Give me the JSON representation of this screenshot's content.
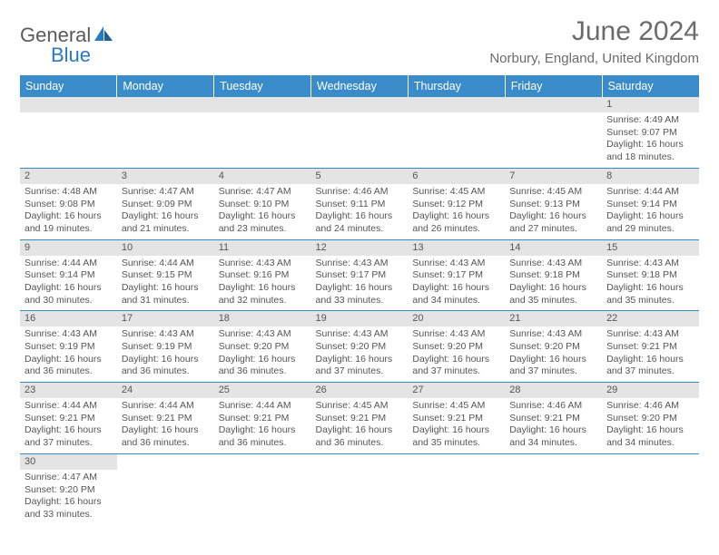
{
  "logo": {
    "part1": "General",
    "part2": "Blue"
  },
  "title": "June 2024",
  "location": "Norbury, England, United Kingdom",
  "colors": {
    "header_bg": "#3a8bc9",
    "header_text": "#ffffff",
    "daynum_bg": "#e4e4e4",
    "text": "#555555",
    "border": "#3a8bc9",
    "logo_gray": "#5a5a5a",
    "logo_blue": "#2a7ac0"
  },
  "day_headers": [
    "Sunday",
    "Monday",
    "Tuesday",
    "Wednesday",
    "Thursday",
    "Friday",
    "Saturday"
  ],
  "weeks": [
    [
      null,
      null,
      null,
      null,
      null,
      null,
      {
        "n": "1",
        "sr": "Sunrise: 4:49 AM",
        "ss": "Sunset: 9:07 PM",
        "d1": "Daylight: 16 hours",
        "d2": "and 18 minutes."
      }
    ],
    [
      {
        "n": "2",
        "sr": "Sunrise: 4:48 AM",
        "ss": "Sunset: 9:08 PM",
        "d1": "Daylight: 16 hours",
        "d2": "and 19 minutes."
      },
      {
        "n": "3",
        "sr": "Sunrise: 4:47 AM",
        "ss": "Sunset: 9:09 PM",
        "d1": "Daylight: 16 hours",
        "d2": "and 21 minutes."
      },
      {
        "n": "4",
        "sr": "Sunrise: 4:47 AM",
        "ss": "Sunset: 9:10 PM",
        "d1": "Daylight: 16 hours",
        "d2": "and 23 minutes."
      },
      {
        "n": "5",
        "sr": "Sunrise: 4:46 AM",
        "ss": "Sunset: 9:11 PM",
        "d1": "Daylight: 16 hours",
        "d2": "and 24 minutes."
      },
      {
        "n": "6",
        "sr": "Sunrise: 4:45 AM",
        "ss": "Sunset: 9:12 PM",
        "d1": "Daylight: 16 hours",
        "d2": "and 26 minutes."
      },
      {
        "n": "7",
        "sr": "Sunrise: 4:45 AM",
        "ss": "Sunset: 9:13 PM",
        "d1": "Daylight: 16 hours",
        "d2": "and 27 minutes."
      },
      {
        "n": "8",
        "sr": "Sunrise: 4:44 AM",
        "ss": "Sunset: 9:14 PM",
        "d1": "Daylight: 16 hours",
        "d2": "and 29 minutes."
      }
    ],
    [
      {
        "n": "9",
        "sr": "Sunrise: 4:44 AM",
        "ss": "Sunset: 9:14 PM",
        "d1": "Daylight: 16 hours",
        "d2": "and 30 minutes."
      },
      {
        "n": "10",
        "sr": "Sunrise: 4:44 AM",
        "ss": "Sunset: 9:15 PM",
        "d1": "Daylight: 16 hours",
        "d2": "and 31 minutes."
      },
      {
        "n": "11",
        "sr": "Sunrise: 4:43 AM",
        "ss": "Sunset: 9:16 PM",
        "d1": "Daylight: 16 hours",
        "d2": "and 32 minutes."
      },
      {
        "n": "12",
        "sr": "Sunrise: 4:43 AM",
        "ss": "Sunset: 9:17 PM",
        "d1": "Daylight: 16 hours",
        "d2": "and 33 minutes."
      },
      {
        "n": "13",
        "sr": "Sunrise: 4:43 AM",
        "ss": "Sunset: 9:17 PM",
        "d1": "Daylight: 16 hours",
        "d2": "and 34 minutes."
      },
      {
        "n": "14",
        "sr": "Sunrise: 4:43 AM",
        "ss": "Sunset: 9:18 PM",
        "d1": "Daylight: 16 hours",
        "d2": "and 35 minutes."
      },
      {
        "n": "15",
        "sr": "Sunrise: 4:43 AM",
        "ss": "Sunset: 9:18 PM",
        "d1": "Daylight: 16 hours",
        "d2": "and 35 minutes."
      }
    ],
    [
      {
        "n": "16",
        "sr": "Sunrise: 4:43 AM",
        "ss": "Sunset: 9:19 PM",
        "d1": "Daylight: 16 hours",
        "d2": "and 36 minutes."
      },
      {
        "n": "17",
        "sr": "Sunrise: 4:43 AM",
        "ss": "Sunset: 9:19 PM",
        "d1": "Daylight: 16 hours",
        "d2": "and 36 minutes."
      },
      {
        "n": "18",
        "sr": "Sunrise: 4:43 AM",
        "ss": "Sunset: 9:20 PM",
        "d1": "Daylight: 16 hours",
        "d2": "and 36 minutes."
      },
      {
        "n": "19",
        "sr": "Sunrise: 4:43 AM",
        "ss": "Sunset: 9:20 PM",
        "d1": "Daylight: 16 hours",
        "d2": "and 37 minutes."
      },
      {
        "n": "20",
        "sr": "Sunrise: 4:43 AM",
        "ss": "Sunset: 9:20 PM",
        "d1": "Daylight: 16 hours",
        "d2": "and 37 minutes."
      },
      {
        "n": "21",
        "sr": "Sunrise: 4:43 AM",
        "ss": "Sunset: 9:20 PM",
        "d1": "Daylight: 16 hours",
        "d2": "and 37 minutes."
      },
      {
        "n": "22",
        "sr": "Sunrise: 4:43 AM",
        "ss": "Sunset: 9:21 PM",
        "d1": "Daylight: 16 hours",
        "d2": "and 37 minutes."
      }
    ],
    [
      {
        "n": "23",
        "sr": "Sunrise: 4:44 AM",
        "ss": "Sunset: 9:21 PM",
        "d1": "Daylight: 16 hours",
        "d2": "and 37 minutes."
      },
      {
        "n": "24",
        "sr": "Sunrise: 4:44 AM",
        "ss": "Sunset: 9:21 PM",
        "d1": "Daylight: 16 hours",
        "d2": "and 36 minutes."
      },
      {
        "n": "25",
        "sr": "Sunrise: 4:44 AM",
        "ss": "Sunset: 9:21 PM",
        "d1": "Daylight: 16 hours",
        "d2": "and 36 minutes."
      },
      {
        "n": "26",
        "sr": "Sunrise: 4:45 AM",
        "ss": "Sunset: 9:21 PM",
        "d1": "Daylight: 16 hours",
        "d2": "and 36 minutes."
      },
      {
        "n": "27",
        "sr": "Sunrise: 4:45 AM",
        "ss": "Sunset: 9:21 PM",
        "d1": "Daylight: 16 hours",
        "d2": "and 35 minutes."
      },
      {
        "n": "28",
        "sr": "Sunrise: 4:46 AM",
        "ss": "Sunset: 9:21 PM",
        "d1": "Daylight: 16 hours",
        "d2": "and 34 minutes."
      },
      {
        "n": "29",
        "sr": "Sunrise: 4:46 AM",
        "ss": "Sunset: 9:20 PM",
        "d1": "Daylight: 16 hours",
        "d2": "and 34 minutes."
      }
    ],
    [
      {
        "n": "30",
        "sr": "Sunrise: 4:47 AM",
        "ss": "Sunset: 9:20 PM",
        "d1": "Daylight: 16 hours",
        "d2": "and 33 minutes."
      },
      null,
      null,
      null,
      null,
      null,
      null
    ]
  ]
}
